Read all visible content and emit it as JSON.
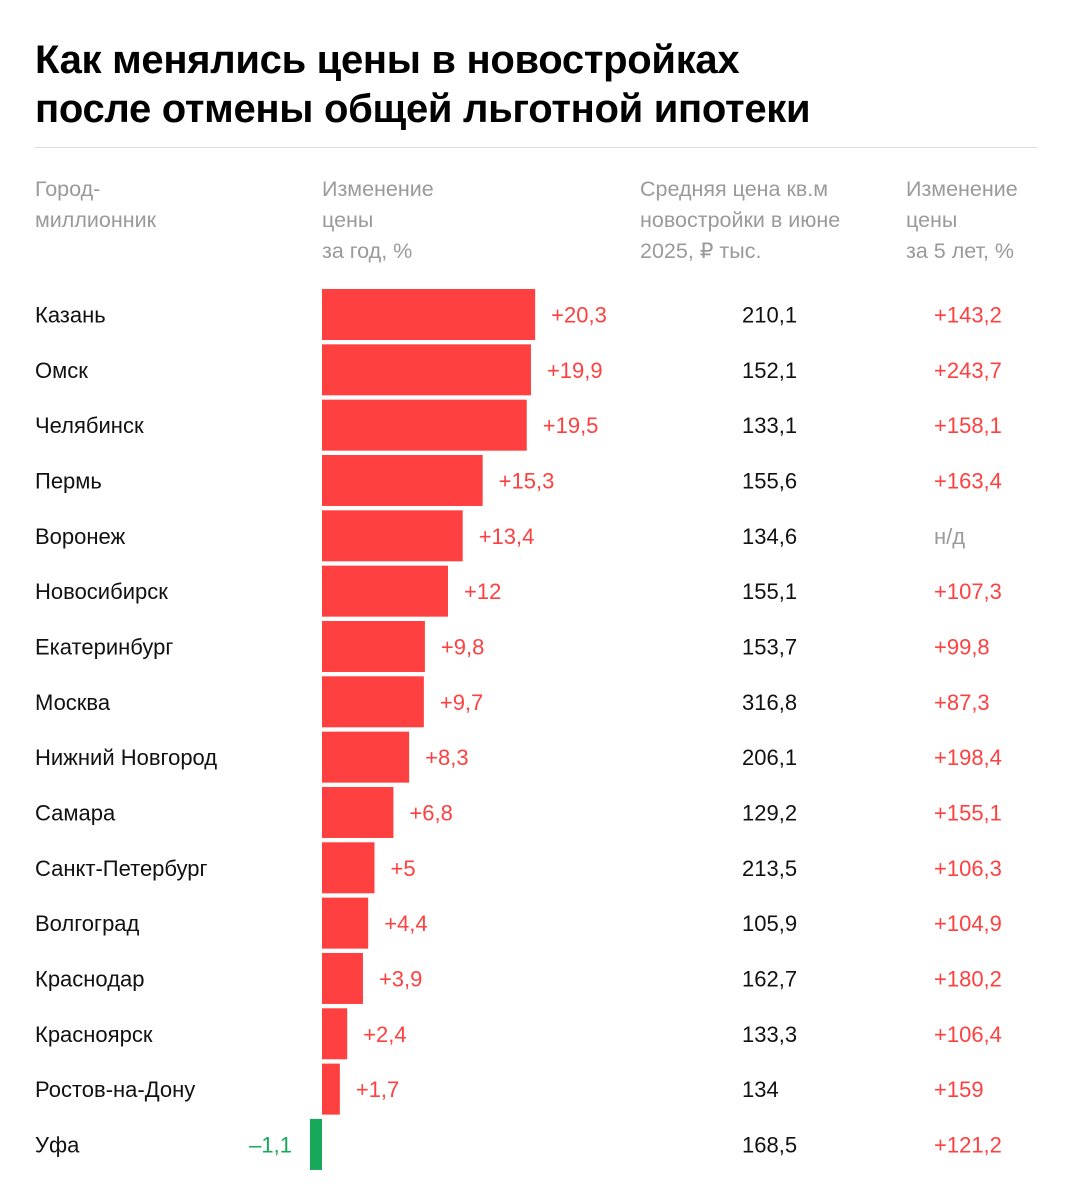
{
  "title": {
    "line1": "Как менялись цены в новостройках",
    "line2": "после отмены общей льготной ипотеки"
  },
  "columns": {
    "city": [
      "Город-",
      "миллионник"
    ],
    "change_year": [
      "Изменение",
      "цены",
      "за год, %"
    ],
    "avg_price": [
      "Средняя цена кв.м",
      "новостройки в июне",
      "2025, ₽ тыс."
    ],
    "change_5y": [
      "Изменение",
      "цены",
      "за 5 лет, %"
    ]
  },
  "colors": {
    "positive": "#ff4040",
    "negative": "#17a85a",
    "text": "#111111",
    "muted": "#9a9a9a",
    "na": "#9a9a9a"
  },
  "chart_data": {
    "type": "bar",
    "orientation": "horizontal",
    "title": "Как менялись цены в новостройках после отмены общей льготной ипотеки",
    "categories": [
      "Казань",
      "Омск",
      "Челябинск",
      "Пермь",
      "Воронеж",
      "Новосибирск",
      "Екатеринбург",
      "Москва",
      "Нижний Новгород",
      "Самара",
      "Санкт-Петербург",
      "Волгоград",
      "Краснодар",
      "Красноярск",
      "Ростов-на-Дону",
      "Уфа"
    ],
    "values": [
      20.3,
      19.9,
      19.5,
      15.3,
      13.4,
      12,
      9.8,
      9.7,
      8.3,
      6.8,
      5,
      4.4,
      3.9,
      2.4,
      1.7,
      -1.1
    ],
    "value_labels": [
      "+20,3",
      "+19,9",
      "+19,5",
      "+15,3",
      "+13,4",
      "+12",
      "+9,8",
      "+9,7",
      "+8,3",
      "+6,8",
      "+5",
      "+4,4",
      "+3,9",
      "+2,4",
      "+1,7",
      "–1,1"
    ],
    "avg_price": [
      "210,1",
      "152,1",
      "133,1",
      "155,6",
      "134,6",
      "155,1",
      "153,7",
      "316,8",
      "206,1",
      "129,2",
      "213,5",
      "105,9",
      "162,7",
      "133,3",
      "134",
      "168,5"
    ],
    "change_5y": [
      "+143,2",
      "+243,7",
      "+158,1",
      "+163,4",
      "н/д",
      "+107,3",
      "+99,8",
      "+87,3",
      "+198,4",
      "+155,1",
      "+106,3",
      "+104,9",
      "+180,2",
      "+106,4",
      "+159",
      "+121,2"
    ],
    "xlabel": "Изменение цены за год, %",
    "ylabel": "Город-миллионник",
    "xlim": [
      -1.1,
      20.3
    ],
    "grid": false
  }
}
